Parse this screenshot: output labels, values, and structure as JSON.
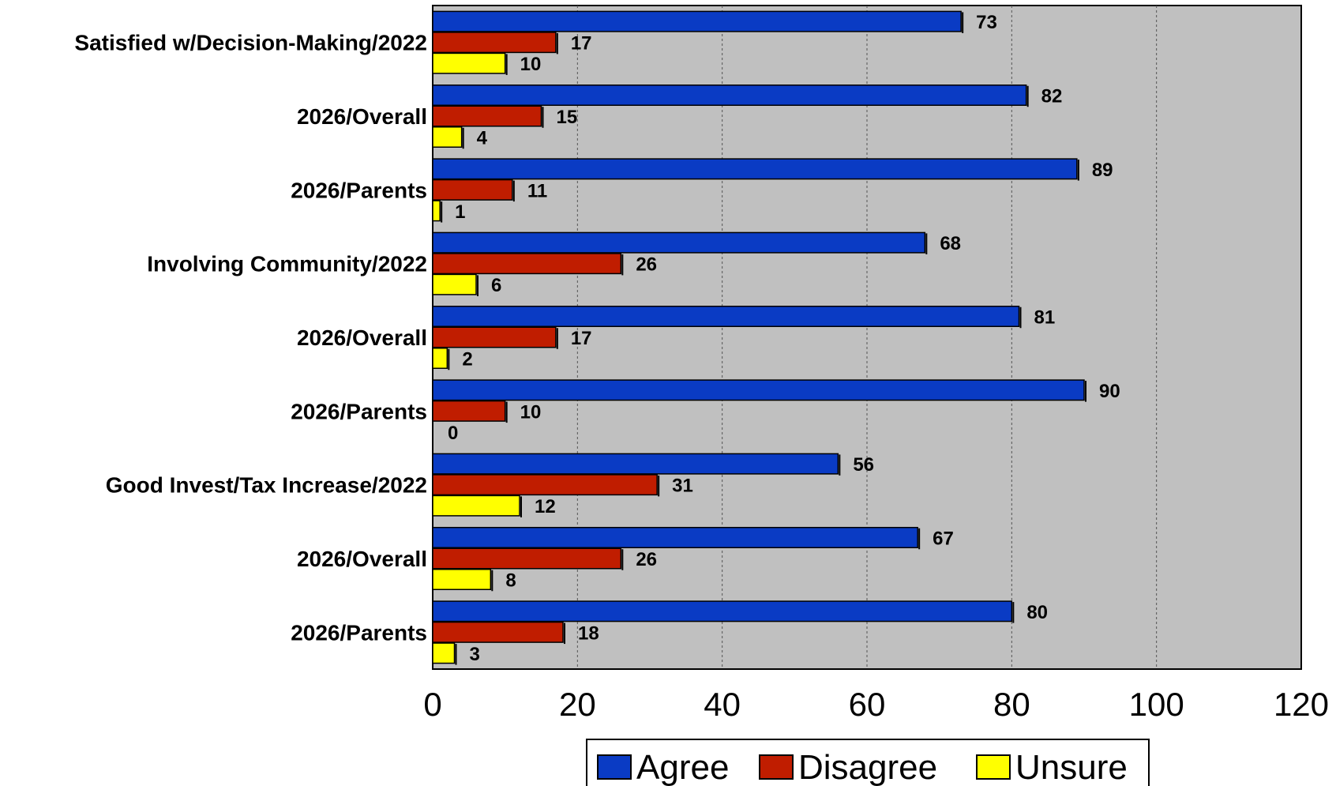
{
  "chart_data": {
    "type": "bar",
    "orientation": "horizontal",
    "categories": [
      "Satisfied w/Decision-Making/2022",
      "2026/Overall",
      "2026/Parents",
      "Involving Community/2022",
      "2026/Overall",
      "2026/Parents",
      "Good Invest/Tax Increase/2022",
      "2026/Overall",
      "2026/Parents"
    ],
    "series": [
      {
        "name": "Agree",
        "color": "#0a3bc4",
        "values": [
          73,
          82,
          89,
          68,
          81,
          90,
          56,
          67,
          80
        ]
      },
      {
        "name": "Disagree",
        "color": "#c01d00",
        "values": [
          17,
          15,
          11,
          26,
          17,
          10,
          31,
          26,
          18
        ]
      },
      {
        "name": "Unsure",
        "color": "#ffff00",
        "values": [
          10,
          4,
          1,
          6,
          2,
          0,
          12,
          8,
          3
        ]
      }
    ],
    "xlim": [
      0,
      120
    ],
    "x_ticks": [
      "0",
      "20",
      "40",
      "60",
      "80",
      "100",
      "120"
    ],
    "grid": "vertical dashed",
    "plot_background": "#c0c0c0",
    "legend_position": "bottom"
  }
}
